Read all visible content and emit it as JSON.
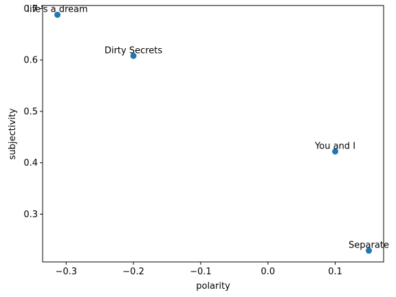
{
  "chart_data": {
    "type": "scatter",
    "title": "",
    "xlabel": "polarity",
    "ylabel": "subjectivity",
    "xlim": [
      -0.335,
      0.172
    ],
    "ylim": [
      0.207,
      0.706
    ],
    "grid": false,
    "x_ticks": [
      {
        "value": -0.3,
        "label": "−0.3"
      },
      {
        "value": -0.2,
        "label": "−0.2"
      },
      {
        "value": -0.1,
        "label": "−0.1"
      },
      {
        "value": 0.0,
        "label": "0.0"
      },
      {
        "value": 0.1,
        "label": "0.1"
      }
    ],
    "y_ticks": [
      {
        "value": 0.3,
        "label": "0.3"
      },
      {
        "value": 0.4,
        "label": "0.4"
      },
      {
        "value": 0.5,
        "label": "0.5"
      },
      {
        "value": 0.6,
        "label": "0.6"
      },
      {
        "value": 0.7,
        "label": "0.7"
      }
    ],
    "marker_color": "#1f77b4",
    "points": [
      {
        "label": "life's a dream",
        "x": -0.313,
        "y": 0.688
      },
      {
        "label": "Dirty Secrets",
        "x": -0.2,
        "y": 0.608
      },
      {
        "label": "You and I",
        "x": 0.1,
        "y": 0.422
      },
      {
        "label": "Separate",
        "x": 0.15,
        "y": 0.229
      }
    ]
  }
}
